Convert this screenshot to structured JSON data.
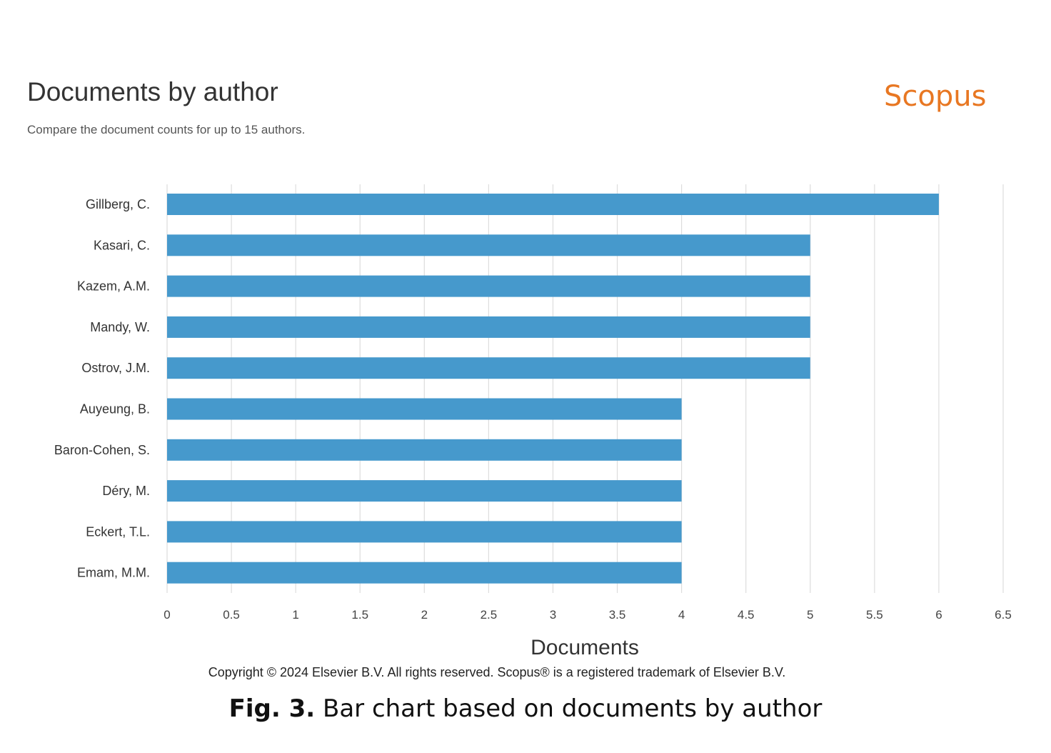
{
  "header": {
    "title": "Documents by author",
    "subtitle": "Compare the document counts for up to 15 authors.",
    "brand": "Scopus"
  },
  "footer": {
    "copyright": "Copyright © 2024 Elsevier B.V. All rights reserved. Scopus® is a registered trademark of Elsevier B.V.",
    "caption_label": "Fig. 3.",
    "caption_text": " Bar chart based on documents by author"
  },
  "colors": {
    "bar": "#4699cc",
    "grid": "#dddddd",
    "brand": "#e87722"
  },
  "chart_data": {
    "type": "bar",
    "orientation": "horizontal",
    "title": "Documents by author",
    "subtitle": "Compare the document counts for up to 15 authors.",
    "xlabel": "Documents",
    "ylabel": "",
    "categories": [
      "Gillberg, C.",
      "Kasari, C.",
      "Kazem, A.M.",
      "Mandy, W.",
      "Ostrov, J.M.",
      "Auyeung, B.",
      "Baron-Cohen, S.",
      "Déry, M.",
      "Eckert, T.L.",
      "Emam, M.M."
    ],
    "values": [
      6,
      5,
      5,
      5,
      5,
      4,
      4,
      4,
      4,
      4
    ],
    "xlim": [
      0,
      6.5
    ],
    "xticks": [
      "0",
      "0.5",
      "1",
      "1.5",
      "2",
      "2.5",
      "3",
      "3.5",
      "4",
      "4.5",
      "5",
      "5.5",
      "6",
      "6.5"
    ],
    "grid": true,
    "legend": "none"
  }
}
